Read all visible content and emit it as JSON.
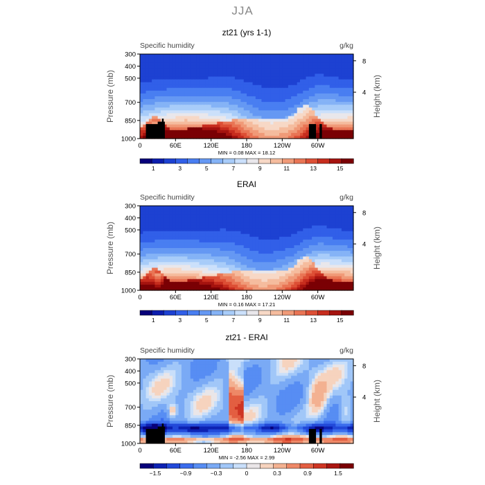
{
  "page_title": "JJA",
  "chart_data": [
    {
      "type": "heatmap",
      "title": "zt21 (yrs 1-1)",
      "left_label": "Specific humidity",
      "right_label": "g/kg",
      "ylabel": "Pressure (mb)",
      "y2label": "Height (km)",
      "y_ticks": [
        300,
        400,
        500,
        700,
        850,
        1000
      ],
      "y_range": [
        300,
        1000
      ],
      "y2_ticks": [
        8,
        4
      ],
      "x_ticks": [
        {
          "lon": 60,
          "label": "60E"
        },
        {
          "lon": 120,
          "label": "120E"
        },
        {
          "lon": 180,
          "label": "180"
        },
        {
          "lon": 240,
          "label": "120W"
        },
        {
          "lon": 300,
          "label": "60W"
        }
      ],
      "x_range": [
        0,
        360
      ],
      "x_start_label": "0",
      "min_label": "MIN =",
      "min": "0.08",
      "max_label": "MAX =",
      "max": "18.12",
      "colorbar_labels": [
        "1",
        "3",
        "5",
        "7",
        "9",
        "11",
        "13",
        "15"
      ],
      "colorbar_levels": [
        0.5,
        1,
        2,
        3,
        4,
        5,
        6,
        7,
        8,
        9,
        10,
        11,
        12,
        13,
        14,
        15,
        16
      ]
    },
    {
      "type": "heatmap",
      "title": "ERAI",
      "left_label": "Specific humidity",
      "right_label": "g/kg",
      "ylabel": "Pressure (mb)",
      "y2label": "Height (km)",
      "y_ticks": [
        300,
        400,
        500,
        700,
        850,
        1000
      ],
      "y_range": [
        300,
        1000
      ],
      "y2_ticks": [
        8,
        4
      ],
      "x_ticks": [
        {
          "lon": 60,
          "label": "60E"
        },
        {
          "lon": 120,
          "label": "120E"
        },
        {
          "lon": 180,
          "label": "180"
        },
        {
          "lon": 240,
          "label": "120W"
        },
        {
          "lon": 300,
          "label": "60W"
        }
      ],
      "x_range": [
        0,
        360
      ],
      "x_start_label": "0",
      "min_label": "MIN =",
      "min": "0.16",
      "max_label": "MAX =",
      "max": "17.21",
      "colorbar_labels": [
        "1",
        "3",
        "5",
        "7",
        "9",
        "11",
        "13",
        "15"
      ],
      "colorbar_levels": [
        0.5,
        1,
        2,
        3,
        4,
        5,
        6,
        7,
        8,
        9,
        10,
        11,
        12,
        13,
        14,
        15,
        16
      ]
    },
    {
      "type": "heatmap",
      "title": "zt21 - ERAI",
      "left_label": "Specific humidity",
      "right_label": "g/kg",
      "ylabel": "Pressure (mb)",
      "y2label": "Height (km)",
      "y_ticks": [
        300,
        400,
        500,
        700,
        850,
        1000
      ],
      "y_range": [
        300,
        1000
      ],
      "y2_ticks": [
        8,
        4
      ],
      "x_ticks": [
        {
          "lon": 60,
          "label": "60E"
        },
        {
          "lon": 120,
          "label": "120E"
        },
        {
          "lon": 180,
          "label": "180"
        },
        {
          "lon": 240,
          "label": "120W"
        },
        {
          "lon": 300,
          "label": "60W"
        }
      ],
      "x_range": [
        0,
        360
      ],
      "x_start_label": "0",
      "min_label": "MIN =",
      "min": "-2.56",
      "max_label": "MAX =",
      "max": "2.99",
      "colorbar_labels": [
        "−1.5",
        "−0.9",
        "−0.3",
        "0",
        "0.3",
        "0.9",
        "1.5"
      ],
      "colorbar_levels": [
        -1.8,
        -1.5,
        -1.2,
        -0.9,
        -0.6,
        -0.3,
        -0.1,
        0,
        0.1,
        0.3,
        0.6,
        0.9,
        1.2,
        1.5,
        1.8
      ]
    }
  ],
  "colors": {
    "palette": [
      "#08007a",
      "#0c1fb0",
      "#1f45d6",
      "#3565ec",
      "#4f86f2",
      "#6ea0f4",
      "#91bdf7",
      "#b8d6fa",
      "#dce9fb",
      "#f7e4d8",
      "#f6c8ad",
      "#f2a583",
      "#ec7e5d",
      "#e1563a",
      "#cb3020",
      "#a81410",
      "#7a0004"
    ],
    "topography": "#000000"
  }
}
